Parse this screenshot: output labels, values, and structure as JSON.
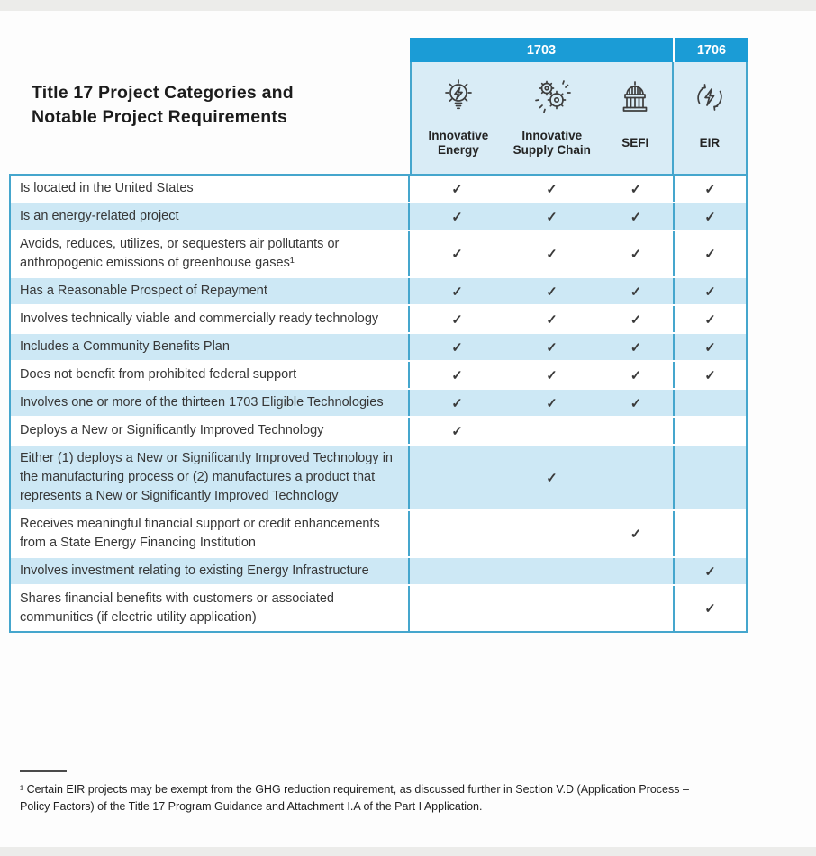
{
  "title": {
    "line1": "Title 17 Project Categories and",
    "line2": "Notable Project Requirements"
  },
  "table": {
    "groups": [
      {
        "label": "1703"
      },
      {
        "label": "1706"
      }
    ],
    "columns": [
      {
        "label": "Innovative Energy",
        "icon": "lightbulb-bolt-icon"
      },
      {
        "label": "Innovative Supply Chain",
        "icon": "gears-icon"
      },
      {
        "label": "SEFI",
        "icon": "capitol-building-icon"
      },
      {
        "label": "EIR",
        "icon": "cycle-bolt-icon"
      }
    ],
    "check_glyph": "✓",
    "rows": [
      {
        "requirement": "Is located in the United States",
        "checks": [
          true,
          true,
          true,
          true
        ]
      },
      {
        "requirement": "Is an energy-related project",
        "checks": [
          true,
          true,
          true,
          true
        ]
      },
      {
        "requirement": "Avoids, reduces, utilizes, or sequesters air pollutants or anthropogenic emissions of greenhouse gases¹",
        "checks": [
          true,
          true,
          true,
          true
        ]
      },
      {
        "requirement": "Has a Reasonable Prospect of Repayment",
        "checks": [
          true,
          true,
          true,
          true
        ]
      },
      {
        "requirement": "Involves technically viable and commercially ready technology",
        "checks": [
          true,
          true,
          true,
          true
        ]
      },
      {
        "requirement": "Includes a Community Benefits Plan",
        "checks": [
          true,
          true,
          true,
          true
        ]
      },
      {
        "requirement": "Does not benefit from prohibited federal support",
        "checks": [
          true,
          true,
          true,
          true
        ]
      },
      {
        "requirement": "Involves one or more of the thirteen 1703 Eligible Technologies",
        "checks": [
          true,
          true,
          true,
          false
        ]
      },
      {
        "requirement": "Deploys a New or Significantly Improved Technology",
        "checks": [
          true,
          false,
          false,
          false
        ]
      },
      {
        "requirement": "Either (1) deploys a New or Significantly Improved Technology in the manufacturing process or (2) manufactures a product that represents a New or Significantly Improved Technology",
        "checks": [
          false,
          true,
          false,
          false
        ]
      },
      {
        "requirement": "Receives meaningful financial support or credit enhancements from a State Energy Financing Institution",
        "checks": [
          false,
          false,
          true,
          false
        ]
      },
      {
        "requirement": "Involves investment relating to existing Energy Infrastructure",
        "checks": [
          false,
          false,
          false,
          true
        ]
      },
      {
        "requirement": "Shares financial benefits with customers or associated communities (if electric utility application)",
        "checks": [
          false,
          false,
          false,
          true
        ]
      }
    ],
    "colors": {
      "header_blue": "#1b9cd6",
      "stripe_blue": "#cde8f5",
      "icon_header_bg": "#d9ecf6",
      "border_cyan": "#45a6cd",
      "text": "#373737"
    }
  },
  "footnote": {
    "text": "¹ Certain EIR projects may be exempt from the GHG reduction requirement, as discussed further in Section V.D (Application Process – Policy Factors) of the Title 17 Program Guidance and Attachment I.A of the Part I Application."
  }
}
